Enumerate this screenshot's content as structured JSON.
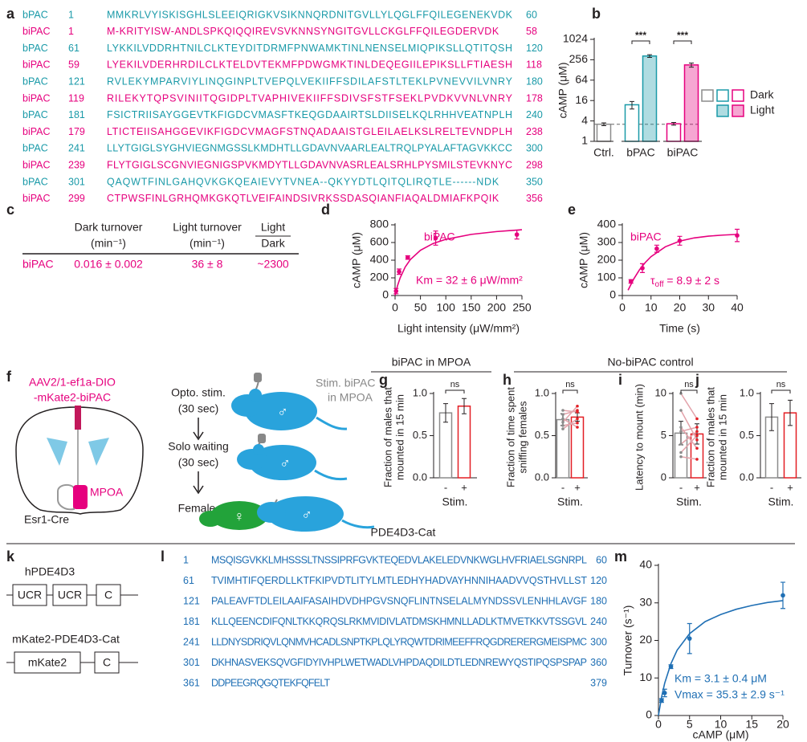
{
  "panel_labels": [
    "a",
    "b",
    "c",
    "d",
    "e",
    "f",
    "g",
    "h",
    "i",
    "j",
    "k",
    "l",
    "m"
  ],
  "alignment": {
    "colors": {
      "bPAC": "#1a9aa8",
      "biPAC": "#e6007e"
    },
    "rows": [
      {
        "name": "bPAC",
        "start": 1,
        "sequence": "MMKRLVYISKISGHLSLEEIQRIGKVSIKNNQRDNITGVLLYLQGLFFQILEGENEKVDK",
        "end": 60
      },
      {
        "name": "biPAC",
        "start": 1,
        "sequence": "M-KRITYISW-ANDLSPKQIQQIREVSVKNNSYNGITGVLLCKGLFFQILEGDERVDK",
        "end": 58
      },
      {
        "name": "bPAC",
        "start": 61,
        "sequence": "LYKKILVDDRHTNILCLKTEYDITDRMFPNWAMKTINLNENSELMIQPIKSLLQTITQSH",
        "end": 120
      },
      {
        "name": "biPAC",
        "start": 59,
        "sequence": "LYEKILVDERHRDILCLKTELDVTEKMFPDWGMKTINLDEQEGIILEPIKSLLFTIAESH",
        "end": 118
      },
      {
        "name": "bPAC",
        "start": 121,
        "sequence": "RVLEKYMPARVIYLINQGINPLTVEPQLVEKIIFFSDILAFSTLTEKLPVNEVVILVNRY",
        "end": 180
      },
      {
        "name": "biPAC",
        "start": 119,
        "sequence": "RILEKYTQPSVINIITQGIDPLTVAPHIVEKIIFFSDIVSFSTFSEKLPVDKVVNLVNRY",
        "end": 178
      },
      {
        "name": "bPAC",
        "start": 181,
        "sequence": "FSICTRIISAYGGEVTKFIGDCVMASFTKEQGDAAIRTSLDIISELKQLRHHVEATNPLH",
        "end": 240
      },
      {
        "name": "biPAC",
        "start": 179,
        "sequence": "LTICTEIISAHGGEVIKFIGDCVMAGFSTNQADAAISTGLEILAELKSLRELTEVNDPLH",
        "end": 238
      },
      {
        "name": "bPAC",
        "start": 241,
        "sequence": "LLYTGIGLSYGHVIEGNMGSSLKMDHTLLGDAVNVAARLEALTRQLPYALAFTAGVKKCC",
        "end": 300
      },
      {
        "name": "biPAC",
        "start": 239,
        "sequence": "FLYTGIGLSCGNVIEGNIGSPVKMDYTLLGDAVNVASRLEALSRHLPYSMILSTEVKNYC",
        "end": 298
      },
      {
        "name": "bPAC",
        "start": 301,
        "sequence": "QAQWTFINLGAHQVKGKQEAIEVYTVNEA--QKYYDTLQITQLIRQTLE------NDK",
        "end": 350
      },
      {
        "name": "biPAC",
        "start": 299,
        "sequence": "CTPWSFINLGRHQMKGKQTLVEIFAINDSIVRKSSDASQIANFIAQALDMIAFKPQIK",
        "end": 356
      }
    ]
  },
  "turnover_table": {
    "headers": [
      {
        "text": "Dark turnover",
        "unit": "(min⁻¹)"
      },
      {
        "text": "Light turnover",
        "unit": "(min⁻¹)"
      },
      {
        "numerator": "Light",
        "denominator": "Dark"
      }
    ],
    "row": [
      "biPAC",
      "0.016 ± 0.002",
      "36 ± 8",
      "~2300"
    ]
  },
  "diagram_f": {
    "injection": [
      "AAV2/1-ef1a-DIO",
      "-mKate2-biPAC"
    ],
    "region": "MPOA",
    "mouse_line": "Esr1-Cre",
    "steps": [
      [
        "Opto. stim.",
        "(30 sec)"
      ],
      [
        "Solo waiting",
        "(30 sec)"
      ],
      [
        "Female"
      ]
    ],
    "stim_label": [
      "Stim. biPAC",
      "in MPOA"
    ],
    "male_symbol": "♂",
    "female_symbol": "♀"
  },
  "behavior_groups": [
    "biPAC in MPOA",
    "No-biPAC control"
  ],
  "section_title": "PDE4D3-Cat",
  "constructs": [
    {
      "name": "hPDE4D3",
      "domains": [
        "UCR",
        "UCR",
        "C"
      ]
    },
    {
      "name": "mKate2-PDE4D3-Cat",
      "domains": [
        "mKate2",
        "C"
      ]
    }
  ],
  "pde_sequence": {
    "color": "#1f6fb4",
    "rows": [
      {
        "start": 1,
        "sequence": "MSQISGVKKLMHSSSLTNSSIPRFGVKTEQEDVLAKELEDVNKWGLHVFRIAELSGNRPL",
        "end": 60
      },
      {
        "start": 61,
        "sequence": "TVIMHTIFQERDLLKTFKIPVDTLITYLMTLEDHYHADVAYHNNIHAADVVQSTHVLLST",
        "end": 120
      },
      {
        "start": 121,
        "sequence": "PALEAVFTDLEILAAIFASAIHDVDHPGVSNQFLINTNSELALMYNDSSVLENHHLAVGF",
        "end": 180
      },
      {
        "start": 181,
        "sequence": "KLLQEENCDIFQNLTKKQRQSLRKMVIDIVLATDMSKHMNLLADLKTMVETKKVTSSGVL",
        "end": 240
      },
      {
        "start": 241,
        "sequence": "LLDNYSDRIQVLQNMVHCADLSNPTKPLQLYRQWTDRIMEEFFRQGDRERERGMEISPMC",
        "end": 300
      },
      {
        "start": 301,
        "sequence": "DKHNASVEKSQVGFIDYIVHPLWETWADLVHPDAQDILDTLEDNREWYQSTIPQSPSPAP",
        "end": 360
      },
      {
        "start": 361,
        "sequence": "DDPEEGRQGQTEKFQFELT",
        "end": 379
      }
    ]
  },
  "chart_data": [
    {
      "type": "logbar",
      "ylabel": "cAMP (μM)",
      "log_base": 2,
      "ylim": [
        1,
        1024
      ],
      "yticks": [
        1,
        4,
        16,
        64,
        256,
        1024
      ],
      "categories": [
        "Ctrl.",
        "bPAC",
        "biPAC"
      ],
      "category_colors": [
        "#8c8c8c",
        "#1a9aa8",
        "#e6007e"
      ],
      "series": [
        {
          "name": "Dark",
          "fill": false,
          "values": [
            3.2,
            12,
            3.3
          ],
          "errors": [
            0.3,
            3,
            0.3
          ]
        },
        {
          "name": "Light",
          "fill": true,
          "values": [
            null,
            330,
            180
          ],
          "errors": [
            null,
            30,
            25
          ]
        }
      ],
      "reference_line": 3.2,
      "significance": [
        null,
        "***",
        "***"
      ]
    },
    {
      "type": "scatter",
      "label": "biPAC",
      "color": "#e6007e",
      "xlabel": "Light intensity (μW/mm²)",
      "ylabel": "cAMP (μM)",
      "xlim": [
        0,
        250
      ],
      "xticks": [
        0,
        50,
        100,
        150,
        200,
        250
      ],
      "ylim": [
        0,
        800
      ],
      "yticks": [
        0,
        200,
        400,
        600,
        800
      ],
      "x": [
        2,
        8,
        25,
        80,
        240
      ],
      "values": [
        50,
        270,
        430,
        650,
        690
      ],
      "errors": [
        30,
        30,
        20,
        80,
        50
      ],
      "fit": {
        "x": [
          0,
          2,
          5,
          10,
          20,
          30,
          50,
          75,
          100,
          150,
          200,
          250
        ],
        "values": [
          0,
          49,
          114,
          200,
          323,
          406,
          512,
          589,
          636,
          692,
          724,
          745
        ]
      },
      "annotation": [
        "Km = 32 ± 6 μW/mm²"
      ]
    },
    {
      "type": "scatter",
      "label": "biPAC",
      "color": "#e6007e",
      "xlabel": "Time (s)",
      "ylabel": "cAMP (μM)",
      "xlim": [
        0,
        40
      ],
      "xticks": [
        0,
        10,
        20,
        30,
        40
      ],
      "ylim": [
        0,
        400
      ],
      "yticks": [
        0,
        100,
        200,
        300,
        400
      ],
      "x": [
        3,
        7,
        12,
        20,
        40
      ],
      "values": [
        80,
        155,
        265,
        310,
        340
      ],
      "errors": [
        10,
        25,
        20,
        25,
        35
      ],
      "fit": {
        "x": [
          2,
          4,
          6,
          8,
          10,
          15,
          20,
          25,
          30,
          35,
          40
        ],
        "values": [
          30,
          94,
          146,
          187,
          220,
          276,
          308,
          326,
          336,
          342,
          346
        ]
      },
      "annotation": [
        {
          "symbol": "τ",
          "subscript": "off",
          "text": " = 8.9 ± 2 s"
        }
      ]
    },
    {
      "type": "bar",
      "ylabel": [
        "Fraction of males that",
        "mounted in 15 min"
      ],
      "xlabel": "Stim.",
      "categories": [
        "-",
        "+"
      ],
      "colors": [
        "#8c8c8c",
        "#e31e24"
      ],
      "values": [
        0.77,
        0.85
      ],
      "errors": [
        0.11,
        0.09
      ],
      "ylim": [
        0,
        1
      ],
      "yticks": [
        {
          "value": 0,
          "label": "0.0"
        },
        0.5,
        {
          "value": 1,
          "label": "1.0"
        }
      ],
      "significance": "ns"
    },
    {
      "type": "bar",
      "ylabel": [
        "Fraction of time spent",
        "sniffing females"
      ],
      "xlabel": "Stim.",
      "categories": [
        "-",
        "+"
      ],
      "colors": [
        "#8c8c8c",
        "#e31e24"
      ],
      "values": [
        0.69,
        0.72
      ],
      "errors": [
        0.07,
        0.05
      ],
      "ylim": [
        0,
        1
      ],
      "yticks": [
        {
          "value": 0,
          "label": "0.0"
        },
        0.5,
        {
          "value": 1,
          "label": "1.0"
        }
      ],
      "significance": "ns",
      "paired_color": "#e3a2aa",
      "paired": [
        [
          0.62,
          0.65
        ],
        [
          0.7,
          0.6
        ],
        [
          0.75,
          0.8
        ],
        [
          0.58,
          0.7
        ],
        [
          0.8,
          0.78
        ],
        [
          0.66,
          0.85
        ]
      ]
    },
    {
      "type": "bar",
      "ylabel": "Latency to mount (min)",
      "xlabel": "Stim.",
      "categories": [
        "-",
        "+"
      ],
      "colors": [
        "#8c8c8c",
        "#e31e24"
      ],
      "values": [
        5.3,
        5.2
      ],
      "errors": [
        1.4,
        1.2
      ],
      "ylim": [
        0,
        10
      ],
      "yticks": [
        0,
        5,
        10
      ],
      "significance": "ns",
      "paired_color": "#e3a2aa",
      "paired": [
        [
          10,
          7
        ],
        [
          8,
          4.5
        ],
        [
          5.5,
          6
        ],
        [
          3,
          5
        ],
        [
          2.5,
          2.2
        ],
        [
          6,
          3.5
        ],
        [
          4,
          5.5
        ]
      ]
    },
    {
      "type": "bar",
      "ylabel": [
        "Fraction of males that",
        "mounted in 15 min"
      ],
      "xlabel": "Stim.",
      "categories": [
        "-",
        "+"
      ],
      "colors": [
        "#8c8c8c",
        "#e31e24"
      ],
      "values": [
        0.72,
        0.77
      ],
      "errors": [
        0.16,
        0.15
      ],
      "ylim": [
        0,
        1
      ],
      "yticks": [
        {
          "value": 0,
          "label": "0.0"
        },
        0.5,
        {
          "value": 1,
          "label": "1.0"
        }
      ],
      "significance": "ns"
    },
    {
      "type": "scatter",
      "color": "#1f6fb4",
      "xlabel": "cAMP (μM)",
      "ylabel": "Turnover (s⁻¹)",
      "xlim": [
        0,
        20
      ],
      "xticks": [
        0,
        5,
        10,
        15,
        20
      ],
      "ylim": [
        0,
        40
      ],
      "yticks": [
        0,
        10,
        20,
        30,
        40
      ],
      "x": [
        0.5,
        1,
        2,
        5,
        20
      ],
      "values": [
        4,
        6,
        13,
        20.5,
        32
      ],
      "errors": [
        0.5,
        1,
        0.5,
        4,
        3.5
      ],
      "fit": {
        "x": [
          0,
          0.5,
          1,
          2,
          3,
          5,
          7.5,
          10,
          12.5,
          15,
          17.5,
          20
        ],
        "values": [
          0,
          4.9,
          8.6,
          13.8,
          17.4,
          21.8,
          25,
          26.9,
          28.3,
          29.3,
          30.1,
          30.6
        ]
      },
      "annotation": [
        "Km = 3.1 ± 0.4 μM",
        "Vmax = 35.3 ± 2.9 s⁻¹"
      ]
    }
  ]
}
